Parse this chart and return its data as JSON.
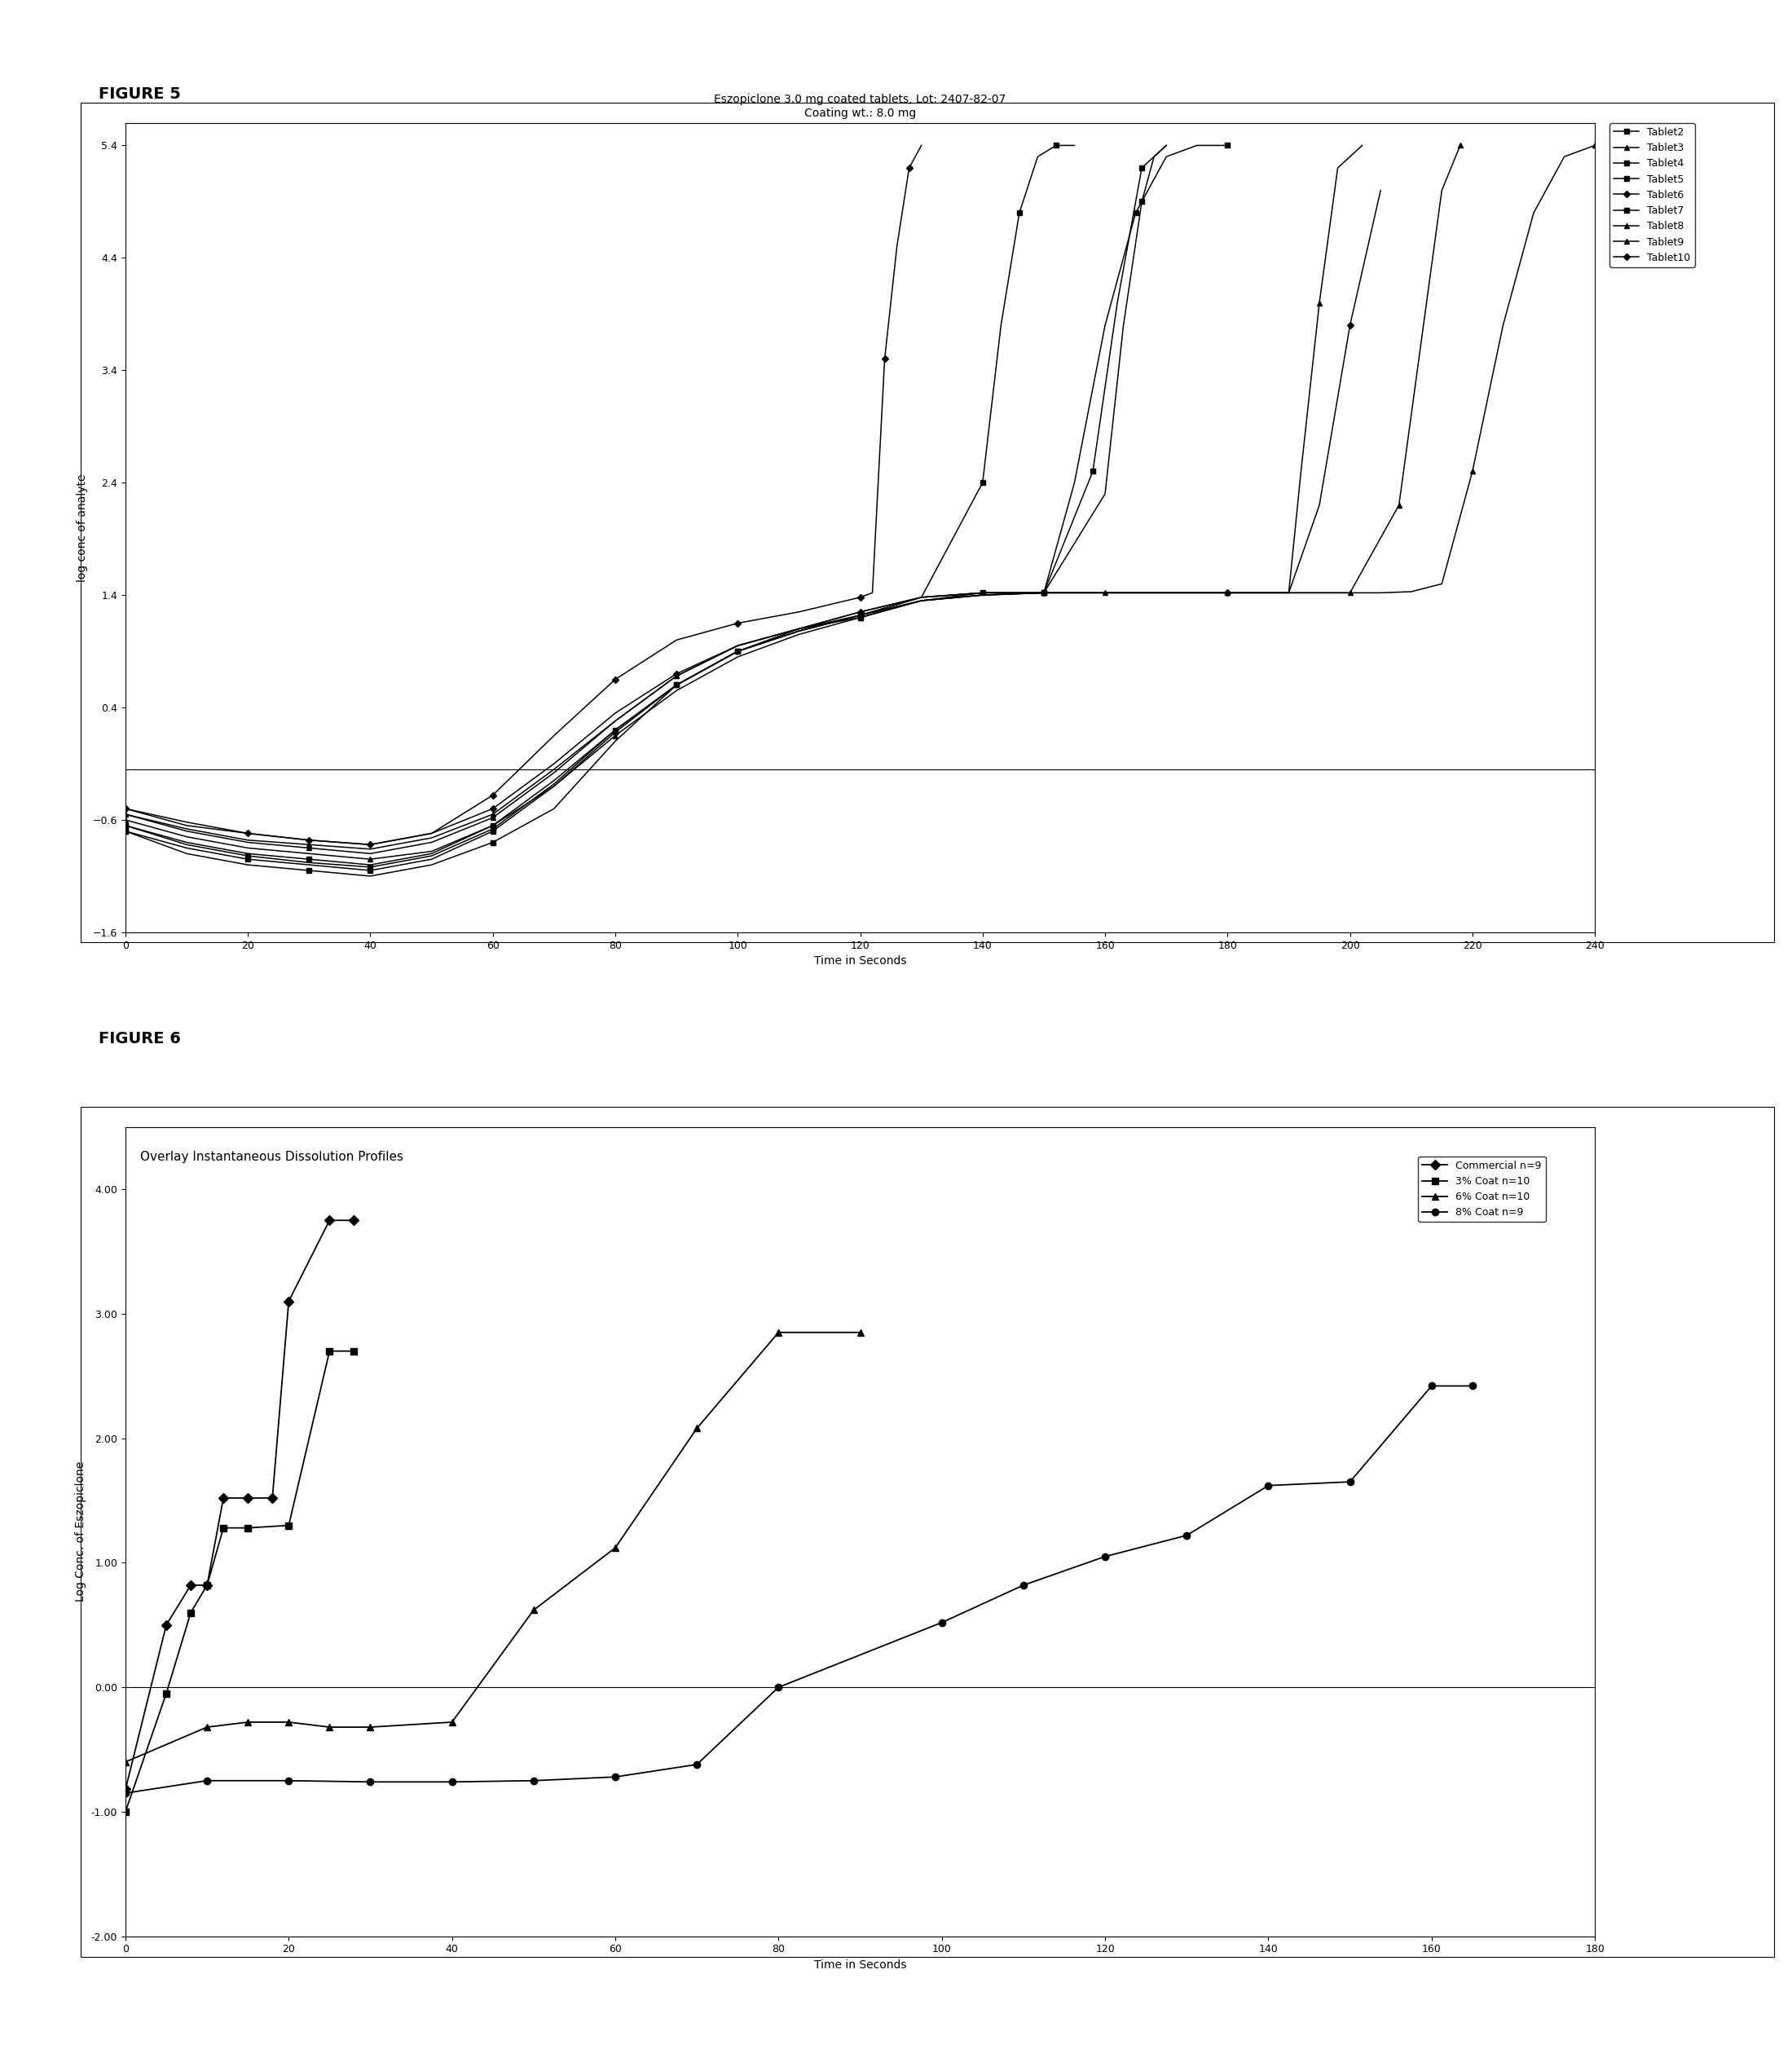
{
  "fig5_label": "FIGURE 5",
  "fig6_label": "FIGURE 6",
  "fig5": {
    "title_line1": "Eszopiclone 3.0 mg coated tablets, Lot: 2407-82-07",
    "title_line2": "Coating wt.: 8.0 mg",
    "xlabel": "Time in Seconds",
    "ylabel": "log conc of analyte",
    "xlim": [
      0,
      240
    ],
    "ylim": [
      -1.6,
      5.6
    ],
    "xticks": [
      0,
      20,
      40,
      60,
      80,
      100,
      120,
      140,
      160,
      180,
      200,
      220,
      240
    ],
    "yticks": [
      -1.6,
      -0.6,
      0.4,
      1.4,
      2.4,
      3.4,
      4.4,
      5.4
    ],
    "hline_y": -0.15,
    "tablets": [
      {
        "name": "Tablet2",
        "marker": "s",
        "x": [
          0,
          10,
          20,
          30,
          40,
          50,
          60,
          70,
          80,
          90,
          100,
          110,
          120,
          130,
          140,
          150,
          155,
          160,
          165,
          170,
          175,
          180
        ],
        "y": [
          -0.7,
          -0.9,
          -1.0,
          -1.05,
          -1.1,
          -1.0,
          -0.8,
          -0.5,
          0.1,
          0.6,
          0.9,
          1.1,
          1.2,
          1.35,
          1.4,
          1.42,
          2.4,
          3.8,
          4.8,
          5.3,
          5.4,
          5.4
        ]
      },
      {
        "name": "Tablet3",
        "marker": "^",
        "x": [
          0,
          10,
          20,
          30,
          40,
          50,
          60,
          70,
          80,
          90,
          100,
          110,
          120,
          130,
          140,
          150,
          160,
          170,
          180,
          190,
          200,
          205,
          210,
          215,
          220,
          225,
          230,
          235,
          240
        ],
        "y": [
          -0.6,
          -0.75,
          -0.85,
          -0.9,
          -0.95,
          -0.88,
          -0.65,
          -0.3,
          0.15,
          0.55,
          0.85,
          1.05,
          1.2,
          1.35,
          1.4,
          1.42,
          1.42,
          1.42,
          1.42,
          1.42,
          1.42,
          1.42,
          1.43,
          1.5,
          2.5,
          3.8,
          4.8,
          5.3,
          5.4
        ]
      },
      {
        "name": "Tablet4",
        "marker": "s",
        "x": [
          0,
          10,
          20,
          30,
          40,
          50,
          60,
          70,
          80,
          90,
          100,
          110,
          120,
          130,
          140,
          150,
          160,
          163,
          166,
          168,
          170
        ],
        "y": [
          -0.65,
          -0.8,
          -0.9,
          -0.95,
          -1.0,
          -0.9,
          -0.65,
          -0.25,
          0.2,
          0.6,
          0.9,
          1.08,
          1.22,
          1.35,
          1.4,
          1.42,
          2.3,
          3.8,
          4.9,
          5.3,
          5.4
        ]
      },
      {
        "name": "Tablet5",
        "marker": "s",
        "x": [
          0,
          10,
          20,
          30,
          40,
          50,
          60,
          70,
          80,
          90,
          100,
          110,
          120,
          130,
          140,
          143,
          146,
          149,
          152,
          155
        ],
        "y": [
          -0.7,
          -0.85,
          -0.95,
          -1.0,
          -1.05,
          -0.95,
          -0.7,
          -0.3,
          0.18,
          0.6,
          0.9,
          1.08,
          1.22,
          1.38,
          2.4,
          3.8,
          4.8,
          5.3,
          5.4,
          5.4
        ]
      },
      {
        "name": "Tablet6",
        "marker": "D",
        "x": [
          0,
          10,
          20,
          30,
          40,
          50,
          60,
          70,
          80,
          90,
          100,
          110,
          120,
          130,
          140,
          150,
          160,
          170,
          180,
          190,
          195,
          200,
          205
        ],
        "y": [
          -0.5,
          -0.65,
          -0.72,
          -0.78,
          -0.82,
          -0.72,
          -0.5,
          -0.1,
          0.35,
          0.7,
          0.95,
          1.1,
          1.25,
          1.38,
          1.42,
          1.42,
          1.42,
          1.42,
          1.42,
          1.42,
          2.2,
          3.8,
          5.0
        ]
      },
      {
        "name": "Tablet7",
        "marker": "s",
        "x": [
          0,
          10,
          20,
          30,
          40,
          50,
          60,
          70,
          80,
          90,
          100,
          110,
          120,
          130,
          140,
          150,
          158,
          162,
          166,
          170
        ],
        "y": [
          -0.65,
          -0.82,
          -0.92,
          -0.98,
          -1.02,
          -0.92,
          -0.68,
          -0.28,
          0.2,
          0.6,
          0.9,
          1.08,
          1.22,
          1.38,
          1.42,
          1.42,
          2.5,
          4.0,
          5.2,
          5.4
        ]
      },
      {
        "name": "Tablet8",
        "marker": "^",
        "x": [
          0,
          10,
          20,
          30,
          40,
          50,
          60,
          70,
          80,
          90,
          100,
          110,
          120,
          130,
          140,
          150,
          160,
          170,
          180,
          190,
          200,
          208,
          212,
          215,
          218
        ],
        "y": [
          -0.55,
          -0.7,
          -0.8,
          -0.85,
          -0.9,
          -0.8,
          -0.58,
          -0.18,
          0.28,
          0.68,
          0.95,
          1.1,
          1.25,
          1.38,
          1.42,
          1.42,
          1.42,
          1.42,
          1.42,
          1.42,
          1.42,
          2.2,
          3.8,
          5.0,
          5.4
        ]
      },
      {
        "name": "Tablet9",
        "marker": "^",
        "x": [
          0,
          10,
          20,
          30,
          40,
          50,
          60,
          70,
          80,
          90,
          100,
          110,
          120,
          130,
          140,
          150,
          160,
          170,
          180,
          190,
          192,
          195,
          198,
          202
        ],
        "y": [
          -0.55,
          -0.68,
          -0.78,
          -0.82,
          -0.86,
          -0.76,
          -0.55,
          -0.15,
          0.28,
          0.68,
          0.95,
          1.1,
          1.22,
          1.35,
          1.42,
          1.42,
          1.42,
          1.42,
          1.42,
          1.42,
          2.5,
          4.0,
          5.2,
          5.4
        ]
      },
      {
        "name": "Tablet10",
        "marker": "D",
        "x": [
          0,
          10,
          20,
          30,
          40,
          50,
          60,
          70,
          80,
          90,
          100,
          110,
          120,
          122,
          124,
          126,
          128,
          130
        ],
        "y": [
          -0.5,
          -0.62,
          -0.72,
          -0.78,
          -0.82,
          -0.72,
          -0.38,
          0.15,
          0.65,
          1.0,
          1.15,
          1.25,
          1.38,
          1.42,
          3.5,
          4.5,
          5.2,
          5.4
        ]
      }
    ]
  },
  "fig6": {
    "title": "Overlay Instantaneous Dissolution Profiles",
    "xlabel": "Time in Seconds",
    "ylabel": "Log Conc. of Eszopiclone",
    "xlim": [
      0,
      180
    ],
    "ylim": [
      -2.0,
      4.5
    ],
    "xticks": [
      0,
      20,
      40,
      60,
      80,
      100,
      120,
      140,
      160,
      180
    ],
    "yticks": [
      -2.0,
      -1.0,
      0.0,
      1.0,
      2.0,
      3.0,
      4.0
    ],
    "ytick_labels": [
      "-2.00",
      "-1.00",
      "0.00",
      "1.00",
      "2.00",
      "3.00",
      "4.00"
    ],
    "hline_y": 0.0,
    "series": [
      {
        "name": "Commercial n=9",
        "marker": "D",
        "x": [
          0,
          5,
          8,
          10,
          12,
          15,
          18,
          20,
          25,
          28
        ],
        "y": [
          -0.82,
          0.5,
          0.82,
          0.82,
          1.52,
          1.52,
          1.52,
          3.1,
          3.75,
          3.75
        ]
      },
      {
        "name": "3% Coat n=10",
        "marker": "s",
        "x": [
          0,
          5,
          8,
          10,
          12,
          15,
          20,
          25,
          28
        ],
        "y": [
          -1.0,
          -0.05,
          0.6,
          0.82,
          1.28,
          1.28,
          1.3,
          2.7,
          2.7
        ]
      },
      {
        "name": "6% Coat n=10",
        "marker": "^",
        "x": [
          0,
          10,
          15,
          20,
          25,
          30,
          40,
          50,
          60,
          70,
          80,
          90
        ],
        "y": [
          -0.6,
          -0.32,
          -0.28,
          -0.28,
          -0.32,
          -0.32,
          -0.28,
          0.62,
          1.12,
          2.08,
          2.85,
          2.85
        ]
      },
      {
        "name": "8% Coat n=9",
        "marker": "o",
        "x": [
          0,
          10,
          20,
          30,
          40,
          50,
          60,
          70,
          80,
          100,
          110,
          120,
          130,
          140,
          150,
          160,
          165
        ],
        "y": [
          -0.85,
          -0.75,
          -0.75,
          -0.76,
          -0.76,
          -0.75,
          -0.72,
          -0.62,
          0.0,
          0.52,
          0.82,
          1.05,
          1.22,
          1.62,
          1.65,
          2.42,
          2.42
        ]
      }
    ]
  }
}
